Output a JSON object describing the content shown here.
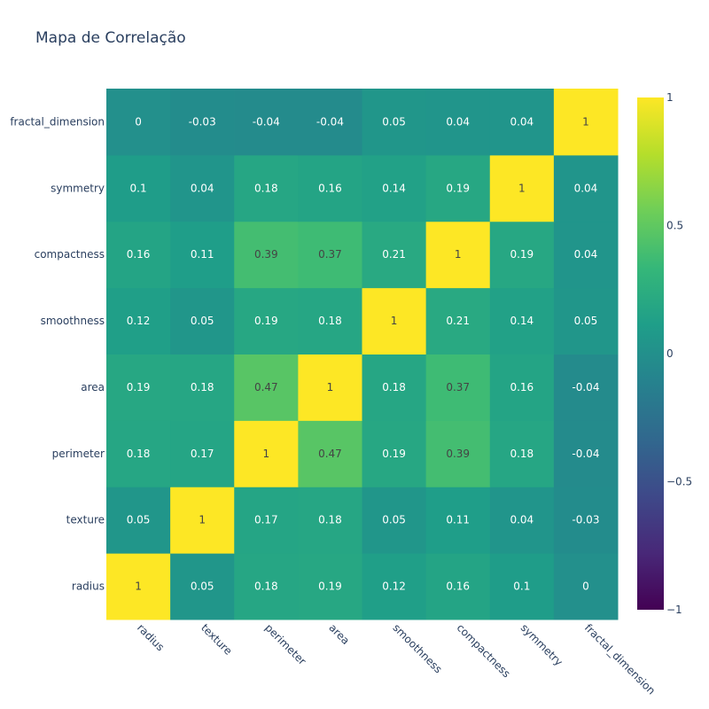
{
  "chart_data": {
    "type": "heatmap",
    "title": "Mapa de Correlação",
    "x_labels": [
      "radius",
      "texture",
      "perimeter",
      "area",
      "smoothness",
      "compactness",
      "symmetry",
      "fractal_dimension"
    ],
    "y_labels": [
      "radius",
      "texture",
      "perimeter",
      "area",
      "smoothness",
      "compactness",
      "symmetry",
      "fractal_dimension"
    ],
    "values": [
      [
        1,
        0.05,
        0.18,
        0.19,
        0.12,
        0.16,
        0.1,
        0
      ],
      [
        0.05,
        1,
        0.17,
        0.18,
        0.05,
        0.11,
        0.04,
        -0.03
      ],
      [
        0.18,
        0.17,
        1,
        0.47,
        0.19,
        0.39,
        0.18,
        -0.04
      ],
      [
        0.19,
        0.18,
        0.47,
        1,
        0.18,
        0.37,
        0.16,
        -0.04
      ],
      [
        0.12,
        0.05,
        0.19,
        0.18,
        1,
        0.21,
        0.14,
        0.05
      ],
      [
        0.16,
        0.11,
        0.39,
        0.37,
        0.21,
        1,
        0.19,
        0.04
      ],
      [
        0.1,
        0.04,
        0.18,
        0.16,
        0.14,
        0.19,
        1,
        0.04
      ],
      [
        0,
        -0.03,
        -0.04,
        -0.04,
        0.05,
        0.04,
        0.04,
        1
      ]
    ],
    "zmin": -1,
    "zmax": 1,
    "colorscale": "Viridis",
    "colorbar": {
      "ticks": [
        1,
        0.5,
        0,
        -0.5,
        -1
      ],
      "tick_labels": [
        "1",
        "0.5",
        "0",
        "−0.5",
        "−1"
      ]
    },
    "text_colors": {
      "light": "#ffffff",
      "dark": "#444444"
    }
  }
}
